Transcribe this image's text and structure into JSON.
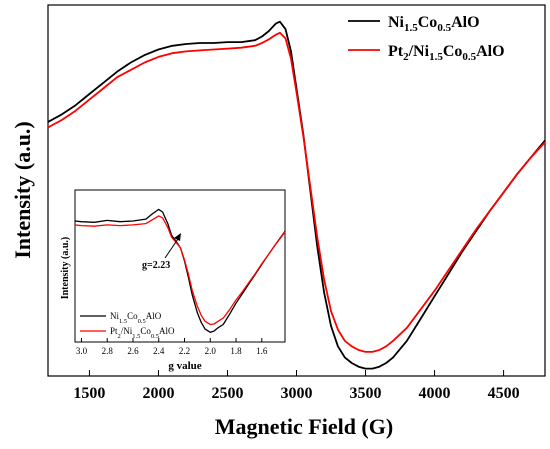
{
  "chart_data": [
    {
      "type": "line",
      "xlabel": "Magnetic Field (G)",
      "ylabel": "Intensity (a.u.)",
      "xlim": [
        1200,
        4800
      ],
      "ylim": [
        -1.05,
        0.95
      ],
      "xticks": [
        1500,
        2000,
        2500,
        3000,
        3500,
        4000,
        4500
      ],
      "x_tick_labels": [
        "1500",
        "2000",
        "2500",
        "3000",
        "3500",
        "4000",
        "4500"
      ],
      "y_tick_labels": false,
      "legend_position": "top-right",
      "series": [
        {
          "name": "Ni1.5Co0.5AlO",
          "legend": {
            "base": "Ni",
            "parts": [
              [
                "1.5",
                "Co"
              ],
              [
                "0.5",
                "AlO"
              ]
            ]
          },
          "color": "#000000",
          "x": [
            1200,
            1300,
            1400,
            1500,
            1600,
            1700,
            1800,
            1900,
            2000,
            2100,
            2200,
            2300,
            2400,
            2500,
            2600,
            2700,
            2750,
            2800,
            2850,
            2880,
            2920,
            2960,
            3000,
            3050,
            3100,
            3150,
            3200,
            3250,
            3300,
            3350,
            3400,
            3450,
            3500,
            3550,
            3600,
            3650,
            3700,
            3800,
            3900,
            4000,
            4100,
            4200,
            4300,
            4400,
            4500,
            4600,
            4700,
            4800
          ],
          "y": [
            0.32,
            0.36,
            0.41,
            0.47,
            0.53,
            0.59,
            0.64,
            0.68,
            0.71,
            0.73,
            0.74,
            0.745,
            0.745,
            0.75,
            0.75,
            0.76,
            0.78,
            0.81,
            0.85,
            0.86,
            0.82,
            0.7,
            0.5,
            0.25,
            -0.05,
            -0.35,
            -0.6,
            -0.78,
            -0.89,
            -0.95,
            -0.98,
            -1.0,
            -1.01,
            -1.01,
            -1.0,
            -0.98,
            -0.95,
            -0.86,
            -0.74,
            -0.62,
            -0.5,
            -0.38,
            -0.27,
            -0.16,
            -0.06,
            0.04,
            0.13,
            0.22
          ]
        },
        {
          "name": "Pt2/Ni1.5Co0.5AlO",
          "legend": {
            "base": "Pt",
            "parts": [
              [
                "2",
                "/Ni"
              ],
              [
                "1.5",
                "Co"
              ],
              [
                "0.5",
                "AlO"
              ]
            ]
          },
          "color": "#ff0000",
          "x": [
            1200,
            1300,
            1400,
            1500,
            1600,
            1700,
            1800,
            1900,
            2000,
            2100,
            2200,
            2300,
            2400,
            2500,
            2600,
            2700,
            2750,
            2800,
            2850,
            2880,
            2920,
            2960,
            3000,
            3050,
            3100,
            3150,
            3200,
            3250,
            3300,
            3350,
            3400,
            3450,
            3500,
            3550,
            3600,
            3650,
            3700,
            3800,
            3900,
            4000,
            4100,
            4200,
            4300,
            4400,
            4500,
            4600,
            4700,
            4800
          ],
          "y": [
            0.29,
            0.33,
            0.38,
            0.44,
            0.5,
            0.56,
            0.6,
            0.64,
            0.67,
            0.69,
            0.7,
            0.705,
            0.71,
            0.715,
            0.72,
            0.73,
            0.745,
            0.765,
            0.79,
            0.8,
            0.77,
            0.66,
            0.48,
            0.24,
            -0.03,
            -0.3,
            -0.53,
            -0.7,
            -0.8,
            -0.86,
            -0.89,
            -0.91,
            -0.92,
            -0.92,
            -0.91,
            -0.89,
            -0.86,
            -0.79,
            -0.69,
            -0.59,
            -0.48,
            -0.37,
            -0.26,
            -0.16,
            -0.06,
            0.04,
            0.13,
            0.21
          ]
        }
      ]
    },
    {
      "type": "line",
      "position": "inset",
      "xlabel": "g value",
      "ylabel": "Intensity (a.u.)",
      "xlim": [
        3.05,
        1.42
      ],
      "ylim": [
        -1.15,
        1.2
      ],
      "xticks": [
        3.0,
        2.8,
        2.6,
        2.4,
        2.2,
        2.0,
        1.8,
        1.6
      ],
      "x_tick_labels": [
        "3.0",
        "2.8",
        "2.6",
        "2.4",
        "2.2",
        "2.0",
        "1.8",
        "1.6"
      ],
      "annotation": {
        "text": "g=2.23",
        "x": 2.23,
        "y": 0.3
      },
      "legend_position": "bottom-left",
      "series": [
        {
          "name": "Ni1.5Co0.5AlO",
          "legend": {
            "base": "Ni",
            "parts": [
              [
                "1.5",
                "Co"
              ],
              [
                "0.5",
                "AlO"
              ]
            ]
          },
          "color": "#000000",
          "x": [
            3.05,
            3.0,
            2.9,
            2.8,
            2.7,
            2.6,
            2.5,
            2.45,
            2.4,
            2.37,
            2.33,
            2.3,
            2.27,
            2.25,
            2.23,
            2.2,
            2.17,
            2.14,
            2.1,
            2.07,
            2.04,
            2.0,
            1.97,
            1.94,
            1.9,
            1.85,
            1.8,
            1.75,
            1.7,
            1.65,
            1.6,
            1.55,
            1.5,
            1.45,
            1.42
          ],
          "y": [
            0.72,
            0.71,
            0.7,
            0.73,
            0.71,
            0.72,
            0.75,
            0.83,
            0.9,
            0.86,
            0.68,
            0.5,
            0.42,
            0.36,
            0.3,
            0.1,
            -0.15,
            -0.42,
            -0.7,
            -0.85,
            -0.95,
            -1.0,
            -0.98,
            -0.93,
            -0.88,
            -0.72,
            -0.55,
            -0.4,
            -0.25,
            -0.1,
            0.05,
            0.2,
            0.34,
            0.48,
            0.56
          ]
        },
        {
          "name": "Pt2/Ni1.5Co0.5AlO",
          "legend": {
            "base": "Pt",
            "parts": [
              [
                "2",
                "/Ni"
              ],
              [
                "1.5",
                "Co"
              ],
              [
                "0.5",
                "AlO"
              ]
            ]
          },
          "color": "#ff0000",
          "x": [
            3.05,
            3.0,
            2.9,
            2.8,
            2.7,
            2.6,
            2.5,
            2.45,
            2.4,
            2.37,
            2.33,
            2.3,
            2.27,
            2.25,
            2.23,
            2.2,
            2.17,
            2.14,
            2.1,
            2.07,
            2.04,
            2.0,
            1.97,
            1.94,
            1.9,
            1.85,
            1.8,
            1.75,
            1.7,
            1.65,
            1.6,
            1.55,
            1.5,
            1.45,
            1.42
          ],
          "y": [
            0.66,
            0.65,
            0.64,
            0.66,
            0.65,
            0.66,
            0.68,
            0.74,
            0.8,
            0.77,
            0.62,
            0.47,
            0.4,
            0.35,
            0.3,
            0.12,
            -0.1,
            -0.35,
            -0.6,
            -0.74,
            -0.83,
            -0.88,
            -0.87,
            -0.83,
            -0.78,
            -0.65,
            -0.5,
            -0.37,
            -0.23,
            -0.09,
            0.06,
            0.2,
            0.34,
            0.47,
            0.55
          ]
        }
      ]
    }
  ]
}
